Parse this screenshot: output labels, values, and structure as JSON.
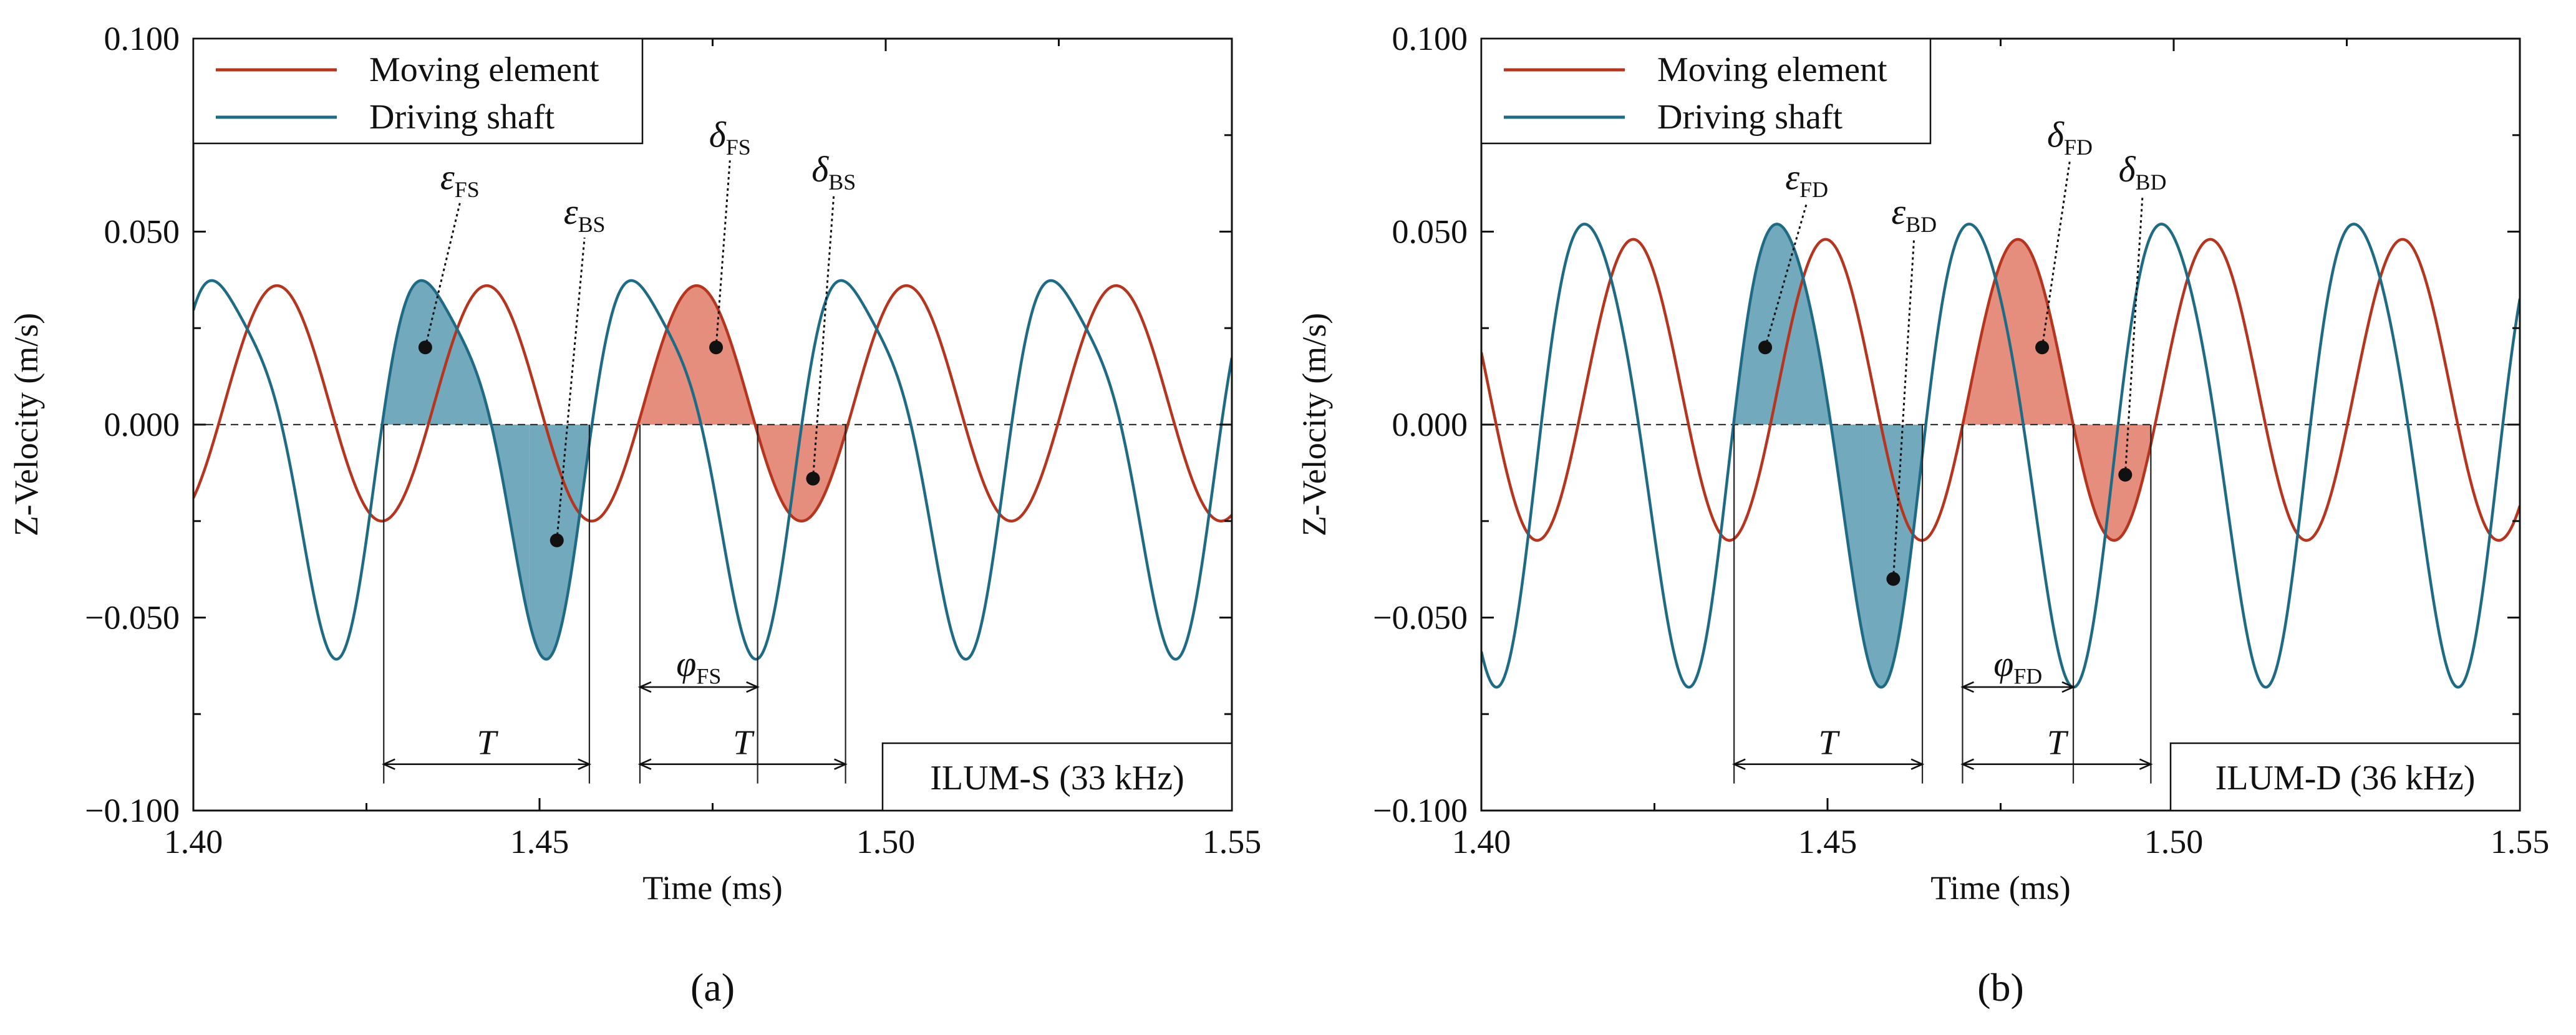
{
  "colors": {
    "moving_element": "#b5351f",
    "driving_shaft": "#1f6b86",
    "fill_driving": "#5a9ab2",
    "fill_moving": "#e07a66",
    "axis": "#111111"
  },
  "chart_data": [
    {
      "type": "line",
      "panel_label": "(a)",
      "badge": "ILUM-S (33 kHz)",
      "xlabel": "Time (ms)",
      "ylabel": "Z-Velocity (m/s)",
      "xlim": [
        1.4,
        1.55
      ],
      "ylim": [
        -0.1,
        0.1
      ],
      "xticks": [
        1.4,
        1.45,
        1.5,
        1.55
      ],
      "xtick_labels": [
        "1.40",
        "1.45",
        "1.50",
        "1.55"
      ],
      "yticks": [
        0.1,
        0.05,
        0.0,
        -0.05,
        -0.1
      ],
      "ytick_labels": [
        "0.100",
        "0.050",
        "0.000",
        "−0.050",
        "−0.100"
      ],
      "legend": [
        "Moving element",
        "Driving shaft"
      ],
      "freq_khz": 33,
      "series": [
        {
          "name": "Moving element",
          "amplitude": 0.0305,
          "offset": 0.0055,
          "phase_time_ms": 1.4045,
          "harmonic2": 0.0
        },
        {
          "name": "Driving shaft",
          "amplitude": 0.047,
          "offset": -0.005,
          "phase_time_ms": 1.4275,
          "harmonic2": 0.01
        }
      ],
      "marks": {
        "period_start": 1.4275,
        "period_mid": 1.4645,
        "period_end": 1.4942,
        "phase_end": 1.4815,
        "period_label": "T",
        "phase_label_base": "φ",
        "phase_label_sub": "FS"
      },
      "annotations": [
        {
          "base": "ε",
          "sub": "FS",
          "point": [
            1.4335,
            0.02
          ],
          "label_at": [
            1.4385,
            0.061
          ]
        },
        {
          "base": "ε",
          "sub": "BS",
          "point": [
            1.4525,
            -0.03
          ],
          "label_at": [
            1.4565,
            0.052
          ]
        },
        {
          "base": "δ",
          "sub": "FS",
          "point": [
            1.4755,
            0.02
          ],
          "label_at": [
            1.4775,
            0.072
          ]
        },
        {
          "base": "δ",
          "sub": "BS",
          "point": [
            1.4895,
            -0.014
          ],
          "label_at": [
            1.4925,
            0.063
          ]
        }
      ]
    },
    {
      "type": "line",
      "panel_label": "(b)",
      "badge": "ILUM-D (36 kHz)",
      "xlabel": "Time (ms)",
      "ylabel": "Z-Velocity (m/s)",
      "xlim": [
        1.4,
        1.55
      ],
      "ylim": [
        -0.1,
        0.1
      ],
      "xticks": [
        1.4,
        1.45,
        1.5,
        1.55
      ],
      "xtick_labels": [
        "1.40",
        "1.45",
        "1.50",
        "1.55"
      ],
      "yticks": [
        0.1,
        0.05,
        0.0,
        -0.05,
        -0.1
      ],
      "ytick_labels": [
        "0.100",
        "0.050",
        "0.000",
        "−0.050",
        "−0.100"
      ],
      "legend": [
        "Moving element",
        "Driving shaft"
      ],
      "freq_khz": 36,
      "series": [
        {
          "name": "Moving element",
          "amplitude": 0.039,
          "offset": 0.009,
          "phase_time_ms": 1.415,
          "harmonic2": 0.0
        },
        {
          "name": "Driving shaft",
          "amplitude": 0.0595,
          "offset": -0.0035,
          "phase_time_ms": 1.4365,
          "harmonic2": 0.006
        }
      ],
      "marks": {
        "period_start": 1.4365,
        "period_mid": 1.4695,
        "period_end": 1.4967,
        "phase_end": 1.4855,
        "period_label": "T",
        "phase_label_base": "φ",
        "phase_label_sub": "FD"
      },
      "annotations": [
        {
          "base": "ε",
          "sub": "FD",
          "point": [
            1.441,
            0.02
          ],
          "label_at": [
            1.447,
            0.061
          ]
        },
        {
          "base": "ε",
          "sub": "BD",
          "point": [
            1.4595,
            -0.04
          ],
          "label_at": [
            1.4625,
            0.052
          ]
        },
        {
          "base": "δ",
          "sub": "FD",
          "point": [
            1.481,
            0.02
          ],
          "label_at": [
            1.485,
            0.072
          ]
        },
        {
          "base": "δ",
          "sub": "BD",
          "point": [
            1.493,
            -0.013
          ],
          "label_at": [
            1.4955,
            0.063
          ]
        }
      ]
    }
  ]
}
